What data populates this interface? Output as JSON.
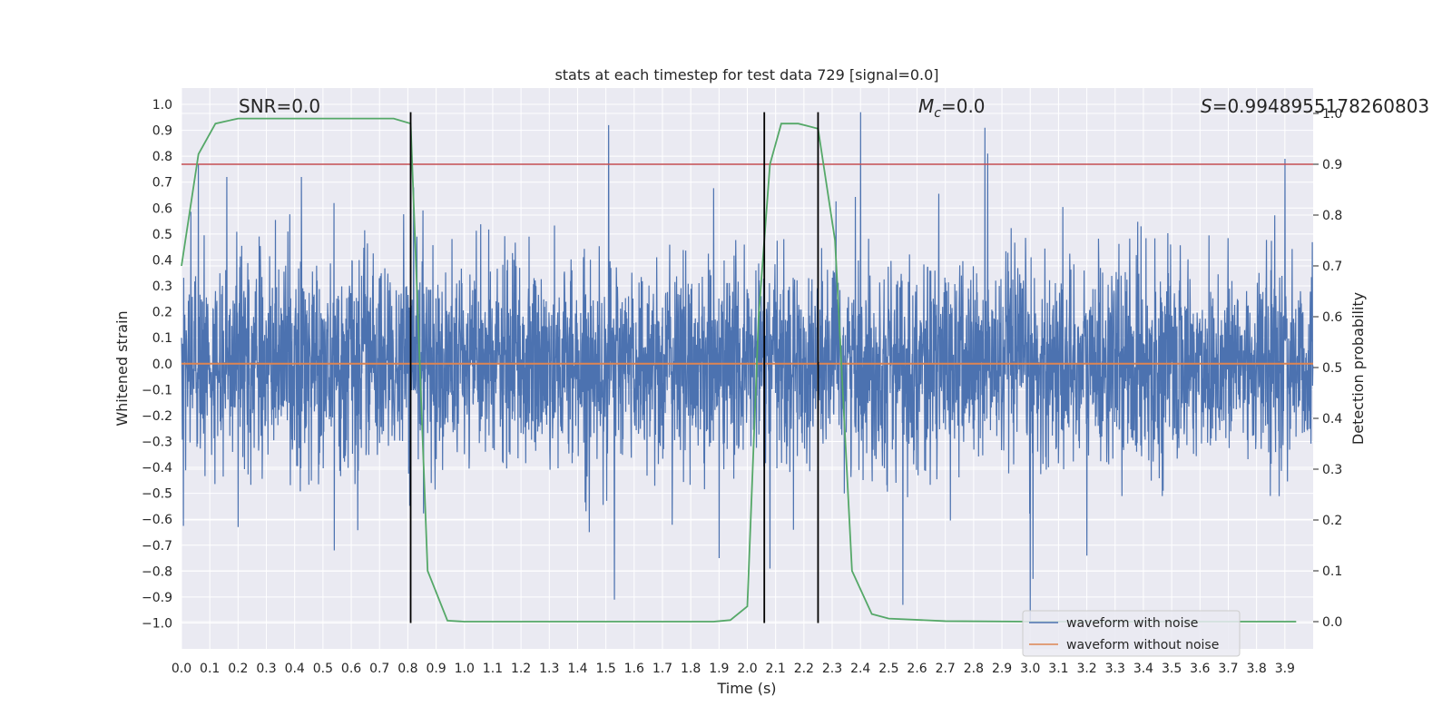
{
  "chart_data": {
    "type": "line",
    "title": "stats at each timestep for test data 729 [signal=0.0]",
    "xlabel": "Time (s)",
    "ylabel": "Whitened strain",
    "y2label": "Detection probability",
    "xlim": [
      0.0,
      4.0
    ],
    "ylim": [
      -1.1,
      1.05
    ],
    "y2lim": [
      -0.05,
      1.0
    ],
    "grid": true,
    "background": "#eaeaf2",
    "x_ticks": [
      "0.0",
      "0.1",
      "0.2",
      "0.3",
      "0.4",
      "0.5",
      "0.6",
      "0.7",
      "0.8",
      "0.9",
      "1.0",
      "1.1",
      "1.2",
      "1.3",
      "1.4",
      "1.5",
      "1.6",
      "1.7",
      "1.8",
      "1.9",
      "2.0",
      "2.1",
      "2.2",
      "2.3",
      "2.4",
      "2.5",
      "2.6",
      "2.7",
      "2.8",
      "2.9",
      "3.0",
      "3.1",
      "3.2",
      "3.3",
      "3.4",
      "3.5",
      "3.6",
      "3.7",
      "3.8",
      "3.9"
    ],
    "y_ticks": [
      "1.0",
      "0.9",
      "0.8",
      "0.7",
      "0.6",
      "0.5",
      "0.4",
      "0.3",
      "0.2",
      "0.1",
      "0.0",
      "−0.1",
      "−0.2",
      "−0.3",
      "−0.4",
      "−0.5",
      "−0.6",
      "−0.7",
      "−0.8",
      "−0.9",
      "−1.0"
    ],
    "y2_ticks": [
      "1.0",
      "0.9",
      "0.8",
      "0.7",
      "0.6",
      "0.5",
      "0.4",
      "0.3",
      "0.2",
      "0.1",
      "0.0"
    ],
    "annotations": {
      "snr": "SNR=0.0",
      "mc_symbol": "M",
      "mc_sub": "c",
      "mc_value": "=0.0",
      "s_symbol": "S",
      "s_value": "=0.9948955178260803"
    },
    "series": [
      {
        "name": "waveform with noise",
        "color": "#4c72b0",
        "axis": "left",
        "kind": "noise",
        "amplitude_typical": 0.35,
        "peaks": [
          {
            "x": 0.06,
            "y": 0.77
          },
          {
            "x": 0.16,
            "y": 0.72
          },
          {
            "x": 0.2,
            "y": -0.63
          },
          {
            "x": 0.54,
            "y": -0.72
          },
          {
            "x": 0.82,
            "y": 0.68
          },
          {
            "x": 1.51,
            "y": 0.92
          },
          {
            "x": 1.53,
            "y": -0.91
          },
          {
            "x": 1.9,
            "y": -0.75
          },
          {
            "x": 2.08,
            "y": -0.79
          },
          {
            "x": 2.4,
            "y": 0.97
          },
          {
            "x": 2.55,
            "y": 0.92
          },
          {
            "x": 2.55,
            "y": -0.93
          },
          {
            "x": 2.84,
            "y": 0.91
          },
          {
            "x": 2.85,
            "y": 0.81
          },
          {
            "x": 3.0,
            "y": -1.0
          },
          {
            "x": 3.01,
            "y": -0.83
          },
          {
            "x": 3.2,
            "y": -0.74
          },
          {
            "x": 3.9,
            "y": 0.79
          }
        ]
      },
      {
        "name": "waveform without noise",
        "color": "#dd8452",
        "axis": "left",
        "x": [
          0.0,
          4.0
        ],
        "y": [
          0.0,
          0.0
        ]
      },
      {
        "name": "Detection probability",
        "color": "#55a868",
        "axis": "right",
        "x": [
          0.0,
          0.06,
          0.12,
          0.2,
          0.3,
          0.5,
          0.75,
          0.81,
          0.87,
          0.94,
          1.0,
          1.2,
          1.5,
          1.8,
          1.88,
          1.94,
          2.0,
          2.04,
          2.08,
          2.12,
          2.18,
          2.25,
          2.31,
          2.37,
          2.44,
          2.5,
          2.7,
          3.0,
          3.5,
          3.94
        ],
        "y": [
          0.7,
          0.92,
          0.98,
          0.99,
          0.99,
          0.99,
          0.99,
          0.98,
          0.1,
          0.002,
          0.0,
          0.0,
          0.0,
          0.0,
          0.0,
          0.003,
          0.03,
          0.6,
          0.9,
          0.98,
          0.98,
          0.97,
          0.75,
          0.1,
          0.015,
          0.006,
          0.001,
          0.0,
          0.0,
          0.0
        ]
      }
    ],
    "threshold": {
      "axis": "right",
      "y": 0.9,
      "color": "#c44e52"
    },
    "vlines": [
      {
        "x": 0.81,
        "color": "#000000"
      },
      {
        "x": 2.06,
        "color": "#000000"
      },
      {
        "x": 2.25,
        "color": "#000000"
      }
    ],
    "legend": {
      "position": "lower-right",
      "entries": [
        {
          "label": "waveform with noise",
          "color": "#4c72b0"
        },
        {
          "label": "waveform without noise",
          "color": "#dd8452"
        }
      ]
    }
  }
}
